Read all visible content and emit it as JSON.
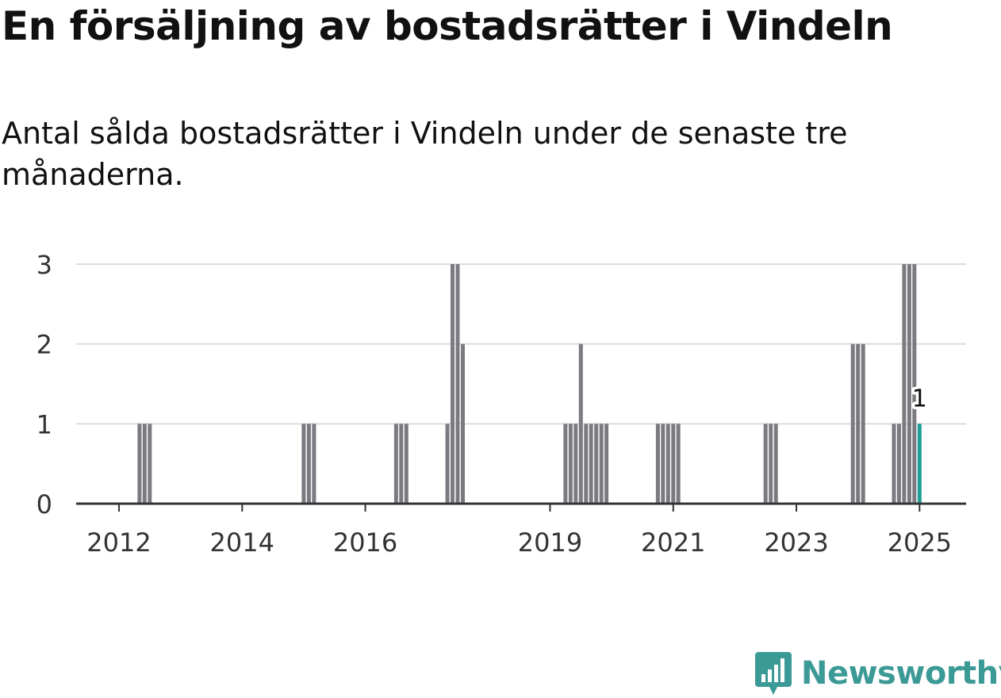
{
  "title": "En försäljning av bostadsrätter i Vindeln",
  "subtitle": "Antal sålda bostadsrätter i Vindeln under de senaste tre månaderna.",
  "brand": {
    "name": "Newsworthy",
    "color": "#3c9a96"
  },
  "chart_data": {
    "type": "bar",
    "ylim": [
      0,
      3
    ],
    "y_ticks": [
      "0",
      "1",
      "2",
      "3"
    ],
    "x_ticks": [
      "2012",
      "2014",
      "2016",
      "2019",
      "2021",
      "2023",
      "2025"
    ],
    "grid": true,
    "bar_color": "#7a7a80",
    "highlight_color": "#1e9e94",
    "series": [
      {
        "values": [
          {
            "x": "2012-05",
            "y": 1
          },
          {
            "x": "2012-06",
            "y": 1
          },
          {
            "x": "2012-07",
            "y": 1
          },
          {
            "x": "2015-01",
            "y": 1
          },
          {
            "x": "2015-02",
            "y": 1
          },
          {
            "x": "2015-03",
            "y": 1
          },
          {
            "x": "2016-07",
            "y": 1
          },
          {
            "x": "2016-08",
            "y": 1
          },
          {
            "x": "2016-09",
            "y": 1
          },
          {
            "x": "2017-05",
            "y": 1
          },
          {
            "x": "2017-06",
            "y": 3
          },
          {
            "x": "2017-07",
            "y": 3
          },
          {
            "x": "2017-08",
            "y": 2
          },
          {
            "x": "2019-04",
            "y": 1
          },
          {
            "x": "2019-05",
            "y": 1
          },
          {
            "x": "2019-06",
            "y": 1
          },
          {
            "x": "2019-07",
            "y": 2
          },
          {
            "x": "2019-08",
            "y": 1
          },
          {
            "x": "2019-09",
            "y": 1
          },
          {
            "x": "2019-10",
            "y": 1
          },
          {
            "x": "2019-11",
            "y": 1
          },
          {
            "x": "2019-12",
            "y": 1
          },
          {
            "x": "2020-10",
            "y": 1
          },
          {
            "x": "2020-11",
            "y": 1
          },
          {
            "x": "2020-12",
            "y": 1
          },
          {
            "x": "2021-01",
            "y": 1
          },
          {
            "x": "2021-02",
            "y": 1
          },
          {
            "x": "2022-07",
            "y": 1
          },
          {
            "x": "2022-08",
            "y": 1
          },
          {
            "x": "2022-09",
            "y": 1
          },
          {
            "x": "2023-12",
            "y": 2
          },
          {
            "x": "2024-01",
            "y": 2
          },
          {
            "x": "2024-02",
            "y": 2
          },
          {
            "x": "2024-08",
            "y": 1
          },
          {
            "x": "2024-09",
            "y": 1
          },
          {
            "x": "2024-10",
            "y": 3
          },
          {
            "x": "2024-11",
            "y": 3
          },
          {
            "x": "2024-12",
            "y": 3
          },
          {
            "x": "2025-01",
            "y": 1,
            "highlight": true,
            "label": "1"
          }
        ]
      }
    ]
  }
}
